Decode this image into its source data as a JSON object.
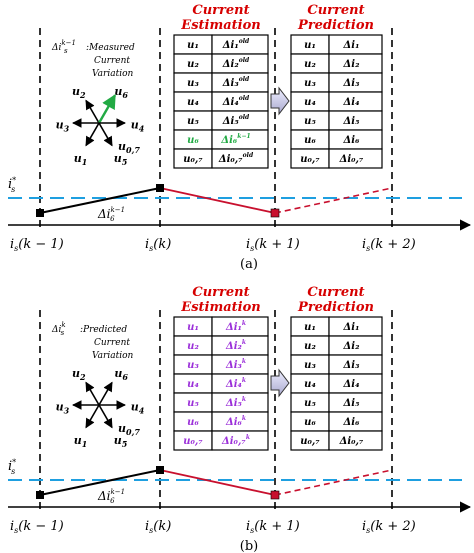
{
  "colors": {
    "header_red": "#d60000",
    "measured_green": "#22aa44",
    "predicted_purple": "#9b30d9",
    "reference_cyan": "#1e9fe0",
    "trajectory_red": "#c8102e"
  },
  "panel_a": {
    "caption": "(a)",
    "estimation_title_1": "Current",
    "estimation_title_2": "Estimation",
    "prediction_title_1": "Current",
    "prediction_title_2": "Prediction",
    "note_symbol": "Δi",
    "note_sup": "k−1",
    "note_sub": "s",
    "note_line1": ":Measured",
    "note_line2": "Current",
    "note_line3": "Variation",
    "reference_label": "i",
    "reference_sub": "s",
    "reference_sup": "*",
    "segment_label": "Δi",
    "segment_sub": "6",
    "segment_sup": "k−1",
    "vectors": [
      "u2",
      "u6",
      "u3",
      "u4",
      "u1",
      "u5",
      "u0,7"
    ],
    "estimation_rows": [
      {
        "u": "u₁",
        "d": "Δi₁",
        "sup": "old",
        "color": "#000000"
      },
      {
        "u": "u₂",
        "d": "Δi₂",
        "sup": "old",
        "color": "#000000"
      },
      {
        "u": "u₃",
        "d": "Δi₃",
        "sup": "old",
        "color": "#000000"
      },
      {
        "u": "u₄",
        "d": "Δi₄",
        "sup": "old",
        "color": "#000000"
      },
      {
        "u": "u₅",
        "d": "Δi₅",
        "sup": "old",
        "color": "#000000"
      },
      {
        "u": "u₆",
        "d": "Δi₆",
        "sup": "k−1",
        "color": "#22aa44"
      },
      {
        "u": "u₀,₇",
        "d": "Δi₀,₇",
        "sup": "old",
        "color": "#000000"
      }
    ],
    "prediction_rows": [
      {
        "u": "u₁",
        "d": "Δi₁"
      },
      {
        "u": "u₂",
        "d": "Δi₂"
      },
      {
        "u": "u₃",
        "d": "Δi₃"
      },
      {
        "u": "u₄",
        "d": "Δi₄"
      },
      {
        "u": "u₅",
        "d": "Δi₅"
      },
      {
        "u": "u₆",
        "d": "Δi₆"
      },
      {
        "u": "u₀,₇",
        "d": "Δi₀,₇"
      }
    ],
    "time_labels": [
      "i (k − 1)",
      "i (k)",
      "i (k + 1)",
      "i (k + 2)"
    ]
  },
  "panel_b": {
    "caption": "(b)",
    "estimation_title_1": "Current",
    "estimation_title_2": "Estimation",
    "prediction_title_1": "Current",
    "prediction_title_2": "Prediction",
    "note_symbol": "Δi",
    "note_sup": "k",
    "note_sub": "s",
    "note_line1": ":Predicted",
    "note_line2": "Current",
    "note_line3": "Variation",
    "reference_label": "i",
    "reference_sub": "s",
    "reference_sup": "*",
    "segment_label": "Δi",
    "segment_sub": "6",
    "segment_sup": "k−1",
    "vectors": [
      "u2",
      "u6",
      "u3",
      "u4",
      "u1",
      "u5",
      "u0,7"
    ],
    "estimation_rows": [
      {
        "u": "u₁",
        "d": "Δi₁",
        "sup": "k"
      },
      {
        "u": "u₂",
        "d": "Δi₂",
        "sup": "k"
      },
      {
        "u": "u₃",
        "d": "Δi₃",
        "sup": "k"
      },
      {
        "u": "u₄",
        "d": "Δi₄",
        "sup": "k"
      },
      {
        "u": "u₅",
        "d": "Δi₅",
        "sup": "k"
      },
      {
        "u": "u₆",
        "d": "Δi₆",
        "sup": "k"
      },
      {
        "u": "u₀,₇",
        "d": "Δi₀,₇",
        "sup": "k"
      }
    ],
    "prediction_rows": [
      {
        "u": "u₁",
        "d": "Δi₁"
      },
      {
        "u": "u₂",
        "d": "Δi₂"
      },
      {
        "u": "u₃",
        "d": "Δi₃"
      },
      {
        "u": "u₄",
        "d": "Δi₄"
      },
      {
        "u": "u₅",
        "d": "Δi₅"
      },
      {
        "u": "u₆",
        "d": "Δi₆"
      },
      {
        "u": "u₀,₇",
        "d": "Δi₀,₇"
      }
    ],
    "time_labels": [
      "i (k − 1)",
      "i (k)",
      "i (k + 1)",
      "i (k + 2)"
    ]
  }
}
